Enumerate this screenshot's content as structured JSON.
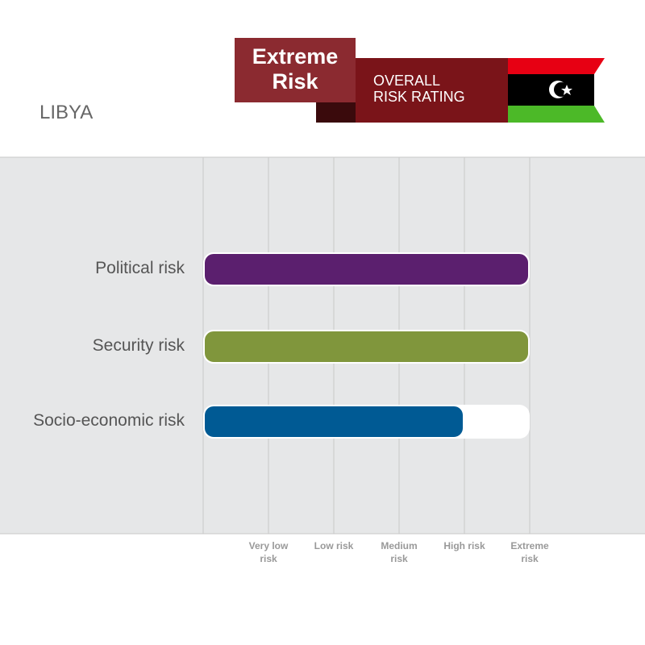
{
  "chart_data": {
    "type": "bar",
    "orientation": "horizontal",
    "title": "LIBYA",
    "badge": {
      "rating": "Extreme Risk",
      "caption": "OVERALL RISK RATING"
    },
    "categories": [
      "Political risk",
      "Security risk",
      "Socio-economic risk"
    ],
    "values": [
      5,
      5,
      4
    ],
    "colors": [
      "#5b1f6e",
      "#80963c",
      "#005a94"
    ],
    "xlim": [
      0,
      5
    ],
    "xticks": [
      {
        "value": 1,
        "label": "Very low risk"
      },
      {
        "value": 2,
        "label": "Low risk"
      },
      {
        "value": 3,
        "label": "Medium risk"
      },
      {
        "value": 4,
        "label": "High risk"
      },
      {
        "value": 5,
        "label": "Extreme risk"
      }
    ],
    "grid": true
  }
}
